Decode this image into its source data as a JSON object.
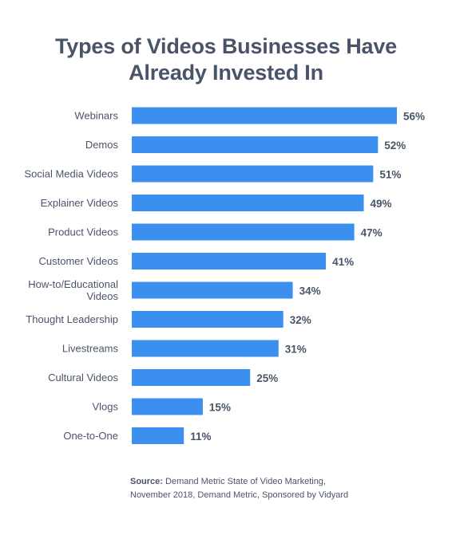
{
  "title_line1": "Types of Videos Businesses Have",
  "title_line2": "Already Invested In",
  "source_label": "Source:",
  "source_line1": "Demand Metric State of Video Marketing,",
  "source_line2": "November 2018, Demand Metric, Sponsored by Vidyard",
  "colors": {
    "bar": "#3a8fef",
    "text": "#4a5468"
  },
  "chart_data": {
    "type": "bar",
    "orientation": "horizontal",
    "title": "Types of Videos Businesses Have Already Invested In",
    "categories": [
      [
        "Webinars"
      ],
      [
        "Demos"
      ],
      [
        "Social Media Videos"
      ],
      [
        "Explainer Videos"
      ],
      [
        "Product Videos"
      ],
      [
        "Customer Videos"
      ],
      [
        "How-to/Educational",
        "Videos"
      ],
      [
        "Thought Leadership"
      ],
      [
        "Livestreams"
      ],
      [
        "Cultural Videos"
      ],
      [
        "Vlogs"
      ],
      [
        "One-to-One"
      ]
    ],
    "values": [
      56,
      52,
      51,
      49,
      47,
      41,
      34,
      32,
      31,
      25,
      15,
      11
    ],
    "value_labels": [
      "56%",
      "52%",
      "51%",
      "49%",
      "47%",
      "41%",
      "34%",
      "32%",
      "31%",
      "25%",
      "15%",
      "11%"
    ],
    "xlim": [
      0,
      56
    ],
    "grid": false,
    "legend": "none"
  }
}
